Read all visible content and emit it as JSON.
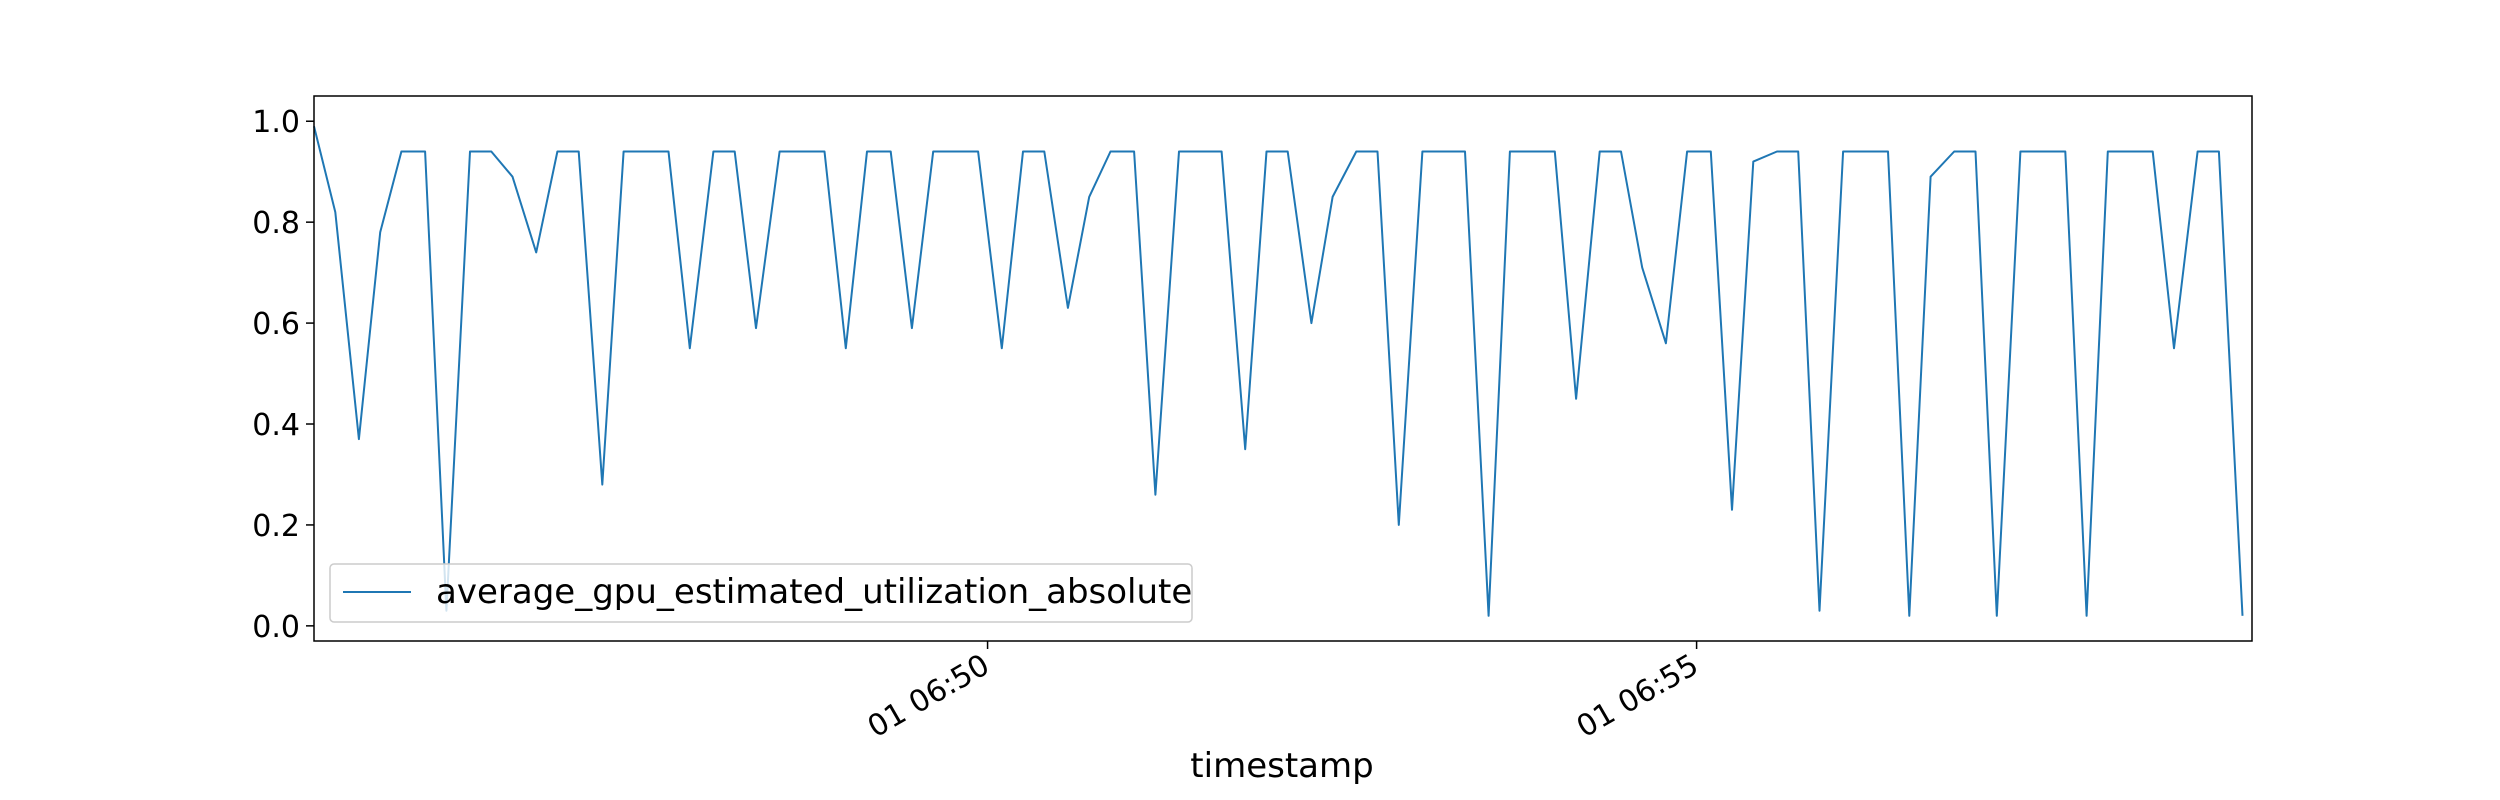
{
  "chart_data": {
    "type": "line",
    "xlabel": "timestamp",
    "ylabel": "",
    "ylim": [
      -0.03,
      1.05
    ],
    "yticks": [
      0.0,
      0.2,
      0.4,
      0.6,
      0.8,
      1.0
    ],
    "ytick_labels": [
      "0.0",
      "0.2",
      "0.4",
      "0.6",
      "0.8",
      "1.0"
    ],
    "xlim": [
      "2000-01-01T06:45:15",
      "2000-01-01T06:58:55"
    ],
    "xticks": [
      "2000-01-01T06:50:00",
      "2000-01-01T06:55:00"
    ],
    "xtick_labels": [
      "01 06:50",
      "01 06:55"
    ],
    "grid": false,
    "legend_position": "lower-left",
    "series": [
      {
        "name": "average_gpu_estimated_utilization_absolute",
        "color": "#1f77b4",
        "x": [
          "2000-01-01T06:45:15",
          "2000-01-01T06:45:24",
          "2000-01-01T06:45:34",
          "2000-01-01T06:45:43",
          "2000-01-01T06:45:52",
          "2000-01-01T06:46:02",
          "2000-01-01T06:46:11",
          "2000-01-01T06:46:21",
          "2000-01-01T06:46:30",
          "2000-01-01T06:46:39",
          "2000-01-01T06:46:49",
          "2000-01-01T06:46:58",
          "2000-01-01T06:47:07",
          "2000-01-01T06:47:17",
          "2000-01-01T06:47:26",
          "2000-01-01T06:47:36",
          "2000-01-01T06:47:45",
          "2000-01-01T06:47:54",
          "2000-01-01T06:48:04",
          "2000-01-01T06:48:13",
          "2000-01-01T06:48:22",
          "2000-01-01T06:48:32",
          "2000-01-01T06:48:41",
          "2000-01-01T06:48:51",
          "2000-01-01T06:49:00",
          "2000-01-01T06:49:09",
          "2000-01-01T06:49:19",
          "2000-01-01T06:49:28",
          "2000-01-01T06:49:37",
          "2000-01-01T06:49:47",
          "2000-01-01T06:49:56",
          "2000-01-01T06:50:06",
          "2000-01-01T06:50:15",
          "2000-01-01T06:50:24",
          "2000-01-01T06:50:34",
          "2000-01-01T06:50:43",
          "2000-01-01T06:50:52",
          "2000-01-01T06:51:02",
          "2000-01-01T06:51:11",
          "2000-01-01T06:51:21",
          "2000-01-01T06:51:30",
          "2000-01-01T06:51:39",
          "2000-01-01T06:51:49",
          "2000-01-01T06:51:58",
          "2000-01-01T06:52:07",
          "2000-01-01T06:52:17",
          "2000-01-01T06:52:26",
          "2000-01-01T06:52:36",
          "2000-01-01T06:52:45",
          "2000-01-01T06:52:54",
          "2000-01-01T06:53:04",
          "2000-01-01T06:53:13",
          "2000-01-01T06:53:22",
          "2000-01-01T06:53:32",
          "2000-01-01T06:53:41",
          "2000-01-01T06:53:51",
          "2000-01-01T06:54:00",
          "2000-01-01T06:54:09",
          "2000-01-01T06:54:19",
          "2000-01-01T06:54:28",
          "2000-01-01T06:54:37",
          "2000-01-01T06:54:47",
          "2000-01-01T06:54:56",
          "2000-01-01T06:55:06",
          "2000-01-01T06:55:15",
          "2000-01-01T06:55:24",
          "2000-01-01T06:55:34",
          "2000-01-01T06:55:43",
          "2000-01-01T06:55:52",
          "2000-01-01T06:56:02",
          "2000-01-01T06:56:11",
          "2000-01-01T06:56:21",
          "2000-01-01T06:56:30",
          "2000-01-01T06:56:39",
          "2000-01-01T06:56:49",
          "2000-01-01T06:56:58",
          "2000-01-01T06:57:07",
          "2000-01-01T06:57:17",
          "2000-01-01T06:57:26",
          "2000-01-01T06:57:36",
          "2000-01-01T06:57:45",
          "2000-01-01T06:57:54",
          "2000-01-01T06:58:04",
          "2000-01-01T06:58:13",
          "2000-01-01T06:58:22",
          "2000-01-01T06:58:32",
          "2000-01-01T06:58:41",
          "2000-01-01T06:58:51"
        ],
        "values": [
          0.99,
          0.82,
          0.37,
          0.78,
          0.94,
          0.94,
          0.03,
          0.94,
          0.94,
          0.89,
          0.74,
          0.94,
          0.94,
          0.28,
          0.94,
          0.94,
          0.94,
          0.55,
          0.94,
          0.94,
          0.59,
          0.94,
          0.94,
          0.94,
          0.55,
          0.94,
          0.94,
          0.59,
          0.94,
          0.94,
          0.94,
          0.55,
          0.94,
          0.94,
          0.63,
          0.85,
          0.94,
          0.94,
          0.26,
          0.94,
          0.94,
          0.94,
          0.35,
          0.94,
          0.94,
          0.6,
          0.85,
          0.94,
          0.94,
          0.2,
          0.94,
          0.94,
          0.94,
          0.02,
          0.94,
          0.94,
          0.94,
          0.45,
          0.94,
          0.94,
          0.71,
          0.56,
          0.94,
          0.94,
          0.23,
          0.92,
          0.94,
          0.94,
          0.03,
          0.94,
          0.94,
          0.94,
          0.02,
          0.89,
          0.94,
          0.94,
          0.02,
          0.94,
          0.94,
          0.94,
          0.02,
          0.94,
          0.94,
          0.94,
          0.55,
          0.94,
          0.94,
          0.02
        ]
      }
    ]
  }
}
